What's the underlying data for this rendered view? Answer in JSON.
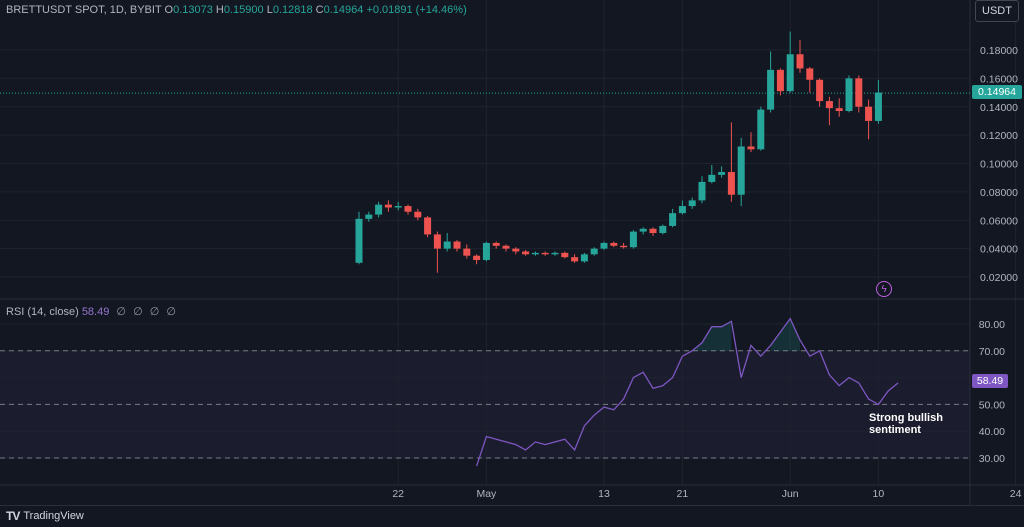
{
  "header": {
    "symbol": "BRETTUSDT SPOT, 1D, BYBIT",
    "o_label": "O",
    "o_value": "0.13073",
    "h_label": "H",
    "h_value": "0.15900",
    "l_label": "L",
    "l_value": "0.12818",
    "c_label": "C",
    "c_value": "0.14964",
    "change": "+0.01891 (+14.46%)"
  },
  "unit_button": "USDT",
  "last_price_tag": "0.14964",
  "rsi_legend": {
    "label": "RSI (14, close)",
    "value": "58.49",
    "na_marks": [
      "∅",
      "∅",
      "∅",
      "∅"
    ]
  },
  "rsi_tag": "58.49",
  "annotation": {
    "line1": "Strong bullish",
    "line2": "sentiment"
  },
  "footer": {
    "brand": "TradingView",
    "logo_mark": "TV"
  },
  "colors": {
    "up": "#26a69a",
    "down": "#ef5350",
    "rsi": "#7e57c2",
    "background": "#131722"
  },
  "icons": {
    "event": "lightning-event-icon"
  },
  "chart_data": [
    {
      "type": "candlestick",
      "title": "BRETTUSDT SPOT, 1D, BYBIT",
      "ylim": [
        0.0,
        0.2
      ],
      "y_ticks": [
        "0.18000",
        "0.16000",
        "0.14000",
        "0.12000",
        "0.10000",
        "0.08000",
        "0.06000",
        "0.04000",
        "0.02000"
      ],
      "y_tick_values": [
        0.18,
        0.16,
        0.14,
        0.12,
        0.1,
        0.08,
        0.06,
        0.04,
        0.02
      ],
      "x_ticks": [
        {
          "label": "22",
          "index": 4
        },
        {
          "label": "May",
          "index": 13
        },
        {
          "label": "13",
          "index": 25
        },
        {
          "label": "21",
          "index": 33
        },
        {
          "label": "Jun",
          "index": 44
        },
        {
          "label": "10",
          "index": 53
        },
        {
          "label": "24",
          "index": 67
        }
      ],
      "grid": true,
      "last_price": 0.14964,
      "candles": [
        [
          0.03,
          0.061,
          0.066,
          0.029
        ],
        [
          0.061,
          0.064,
          0.066,
          0.059
        ],
        [
          0.064,
          0.071,
          0.073,
          0.062
        ],
        [
          0.071,
          0.069,
          0.074,
          0.066
        ],
        [
          0.069,
          0.07,
          0.073,
          0.067
        ],
        [
          0.07,
          0.066,
          0.071,
          0.064
        ],
        [
          0.066,
          0.062,
          0.068,
          0.06
        ],
        [
          0.062,
          0.05,
          0.063,
          0.048
        ],
        [
          0.05,
          0.04,
          0.052,
          0.023
        ],
        [
          0.04,
          0.045,
          0.051,
          0.038
        ],
        [
          0.045,
          0.04,
          0.046,
          0.038
        ],
        [
          0.04,
          0.035,
          0.043,
          0.033
        ],
        [
          0.035,
          0.032,
          0.036,
          0.029
        ],
        [
          0.032,
          0.044,
          0.045,
          0.031
        ],
        [
          0.044,
          0.042,
          0.045,
          0.04
        ],
        [
          0.042,
          0.04,
          0.043,
          0.038
        ],
        [
          0.04,
          0.038,
          0.041,
          0.036
        ],
        [
          0.038,
          0.036,
          0.039,
          0.035
        ],
        [
          0.036,
          0.037,
          0.038,
          0.035
        ],
        [
          0.037,
          0.036,
          0.038,
          0.035
        ],
        [
          0.036,
          0.037,
          0.038,
          0.035
        ],
        [
          0.037,
          0.034,
          0.038,
          0.033
        ],
        [
          0.034,
          0.031,
          0.036,
          0.03
        ],
        [
          0.031,
          0.036,
          0.037,
          0.03
        ],
        [
          0.036,
          0.04,
          0.041,
          0.035
        ],
        [
          0.04,
          0.044,
          0.045,
          0.039
        ],
        [
          0.044,
          0.042,
          0.045,
          0.041
        ],
        [
          0.042,
          0.041,
          0.044,
          0.04
        ],
        [
          0.041,
          0.052,
          0.053,
          0.04
        ],
        [
          0.052,
          0.054,
          0.055,
          0.05
        ],
        [
          0.054,
          0.051,
          0.055,
          0.049
        ],
        [
          0.051,
          0.056,
          0.057,
          0.05
        ],
        [
          0.056,
          0.065,
          0.068,
          0.055
        ],
        [
          0.065,
          0.07,
          0.074,
          0.064
        ],
        [
          0.07,
          0.074,
          0.076,
          0.068
        ],
        [
          0.074,
          0.087,
          0.091,
          0.072
        ],
        [
          0.087,
          0.092,
          0.099,
          0.086
        ],
        [
          0.092,
          0.094,
          0.098,
          0.09
        ],
        [
          0.094,
          0.078,
          0.129,
          0.073
        ],
        [
          0.078,
          0.112,
          0.118,
          0.07
        ],
        [
          0.112,
          0.11,
          0.122,
          0.108
        ],
        [
          0.11,
          0.138,
          0.14,
          0.109
        ],
        [
          0.138,
          0.166,
          0.179,
          0.136
        ],
        [
          0.166,
          0.151,
          0.167,
          0.148
        ],
        [
          0.151,
          0.177,
          0.193,
          0.15
        ],
        [
          0.177,
          0.167,
          0.187,
          0.164
        ],
        [
          0.167,
          0.159,
          0.168,
          0.15
        ],
        [
          0.159,
          0.144,
          0.16,
          0.14
        ],
        [
          0.144,
          0.139,
          0.147,
          0.127
        ],
        [
          0.139,
          0.137,
          0.146,
          0.133
        ],
        [
          0.137,
          0.16,
          0.162,
          0.136
        ],
        [
          0.16,
          0.14,
          0.162,
          0.136
        ],
        [
          0.14,
          0.13,
          0.145,
          0.117
        ],
        [
          0.13,
          0.15,
          0.159,
          0.128
        ]
      ]
    },
    {
      "type": "line",
      "title": "RSI (14, close)",
      "ylim": [
        25,
        87
      ],
      "y_ticks": [
        "80.00",
        "70.00",
        "60.00",
        "50.00",
        "40.00",
        "30.00"
      ],
      "y_tick_values": [
        80,
        70,
        60,
        50,
        40,
        30
      ],
      "bands": {
        "upper": 70,
        "middle": 50,
        "lower": 30
      },
      "start_index": 12,
      "values": [
        27,
        38,
        37,
        36,
        35,
        33,
        36,
        35,
        36,
        37,
        33,
        42,
        46,
        49,
        48,
        52,
        60,
        62,
        56,
        57,
        60,
        68,
        70,
        73,
        79,
        79,
        81,
        60,
        72,
        68,
        72,
        77,
        82,
        74,
        68,
        70,
        61,
        57,
        60,
        58,
        52,
        50,
        55,
        58
      ],
      "last_value": 58.49
    }
  ]
}
